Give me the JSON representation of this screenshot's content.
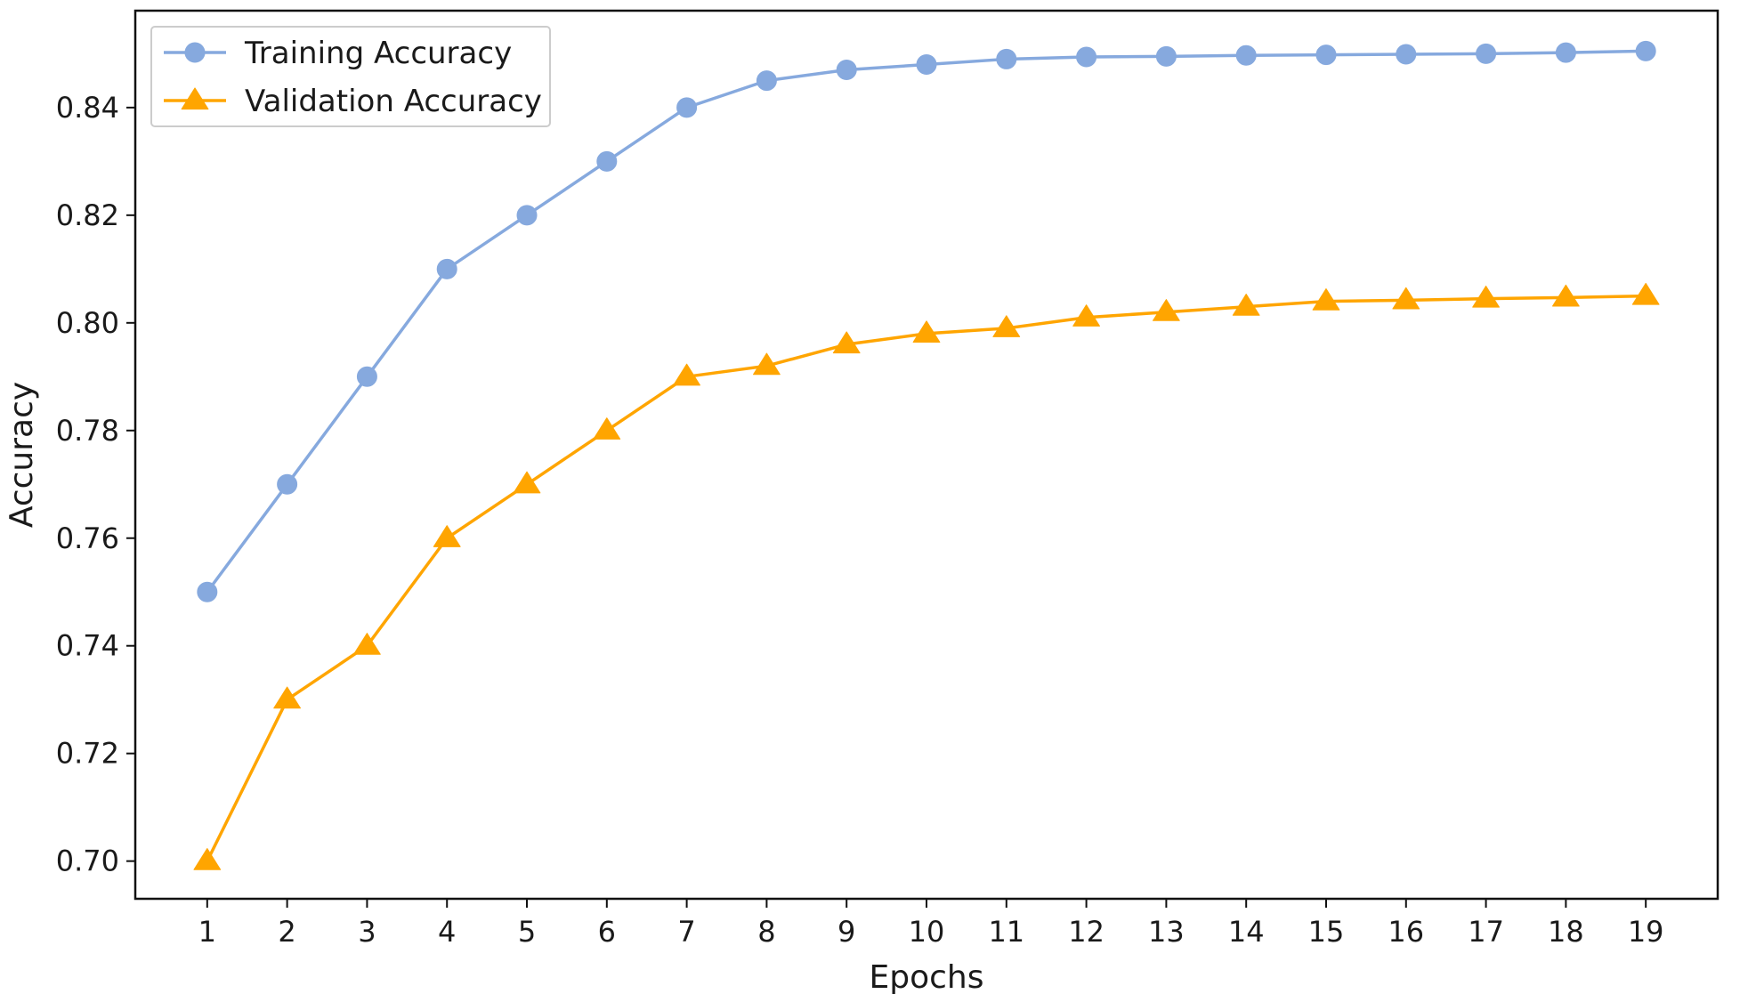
{
  "chart_data": {
    "type": "line",
    "title": "",
    "xlabel": "Epochs",
    "ylabel": "Accuracy",
    "x": [
      1,
      2,
      3,
      4,
      5,
      6,
      7,
      8,
      9,
      10,
      11,
      12,
      13,
      14,
      15,
      16,
      17,
      18,
      19
    ],
    "xlim": [
      0.1,
      19.9
    ],
    "ylim": [
      0.693,
      0.858
    ],
    "yticks": [
      0.7,
      0.72,
      0.74,
      0.76,
      0.78,
      0.8,
      0.82,
      0.84
    ],
    "ytick_labels": [
      "0.70",
      "0.72",
      "0.74",
      "0.76",
      "0.78",
      "0.80",
      "0.82",
      "0.84"
    ],
    "xtick_labels": [
      "1",
      "2",
      "3",
      "4",
      "5",
      "6",
      "7",
      "8",
      "9",
      "10",
      "11",
      "12",
      "13",
      "14",
      "15",
      "16",
      "17",
      "18",
      "19"
    ],
    "grid": false,
    "legend_position": "top-left",
    "series": [
      {
        "name": "Training Accuracy",
        "color": "#86a9de",
        "marker": "circle",
        "values": [
          0.75,
          0.77,
          0.79,
          0.81,
          0.82,
          0.83,
          0.84,
          0.845,
          0.847,
          0.848,
          0.849,
          0.8494,
          0.8495,
          0.8497,
          0.8498,
          0.8499,
          0.85,
          0.8502,
          0.8505
        ]
      },
      {
        "name": "Validation Accuracy",
        "color": "#ffa500",
        "marker": "triangle",
        "values": [
          0.7,
          0.73,
          0.74,
          0.76,
          0.77,
          0.78,
          0.79,
          0.792,
          0.796,
          0.798,
          0.799,
          0.801,
          0.802,
          0.803,
          0.804,
          0.8042,
          0.8045,
          0.8047,
          0.805
        ]
      }
    ]
  }
}
